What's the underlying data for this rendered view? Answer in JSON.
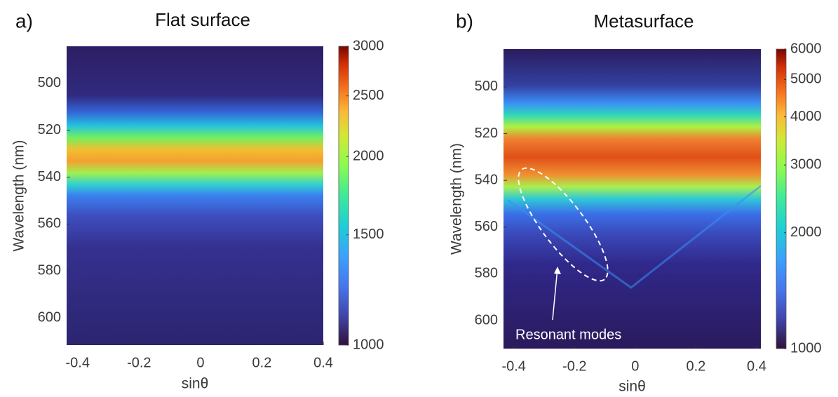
{
  "chart_data": [
    {
      "type": "heatmap",
      "panel_label": "a)",
      "title": "Flat surface",
      "x_label": "sinθ",
      "y_label": "Wavelength (nm)",
      "xlim": [
        -0.436,
        0.4
      ],
      "xticks": [
        -0.4,
        -0.2,
        0,
        0.2,
        0.4
      ],
      "ylim": [
        484.2,
        611.6
      ],
      "yticks": [
        500,
        520,
        540,
        560,
        580,
        600
      ],
      "y_inverted": true,
      "colorbar": {
        "lim": [
          1000,
          3000
        ],
        "ticks": [
          1000,
          1500,
          2000,
          2500,
          3000
        ],
        "scale": "log"
      }
    },
    {
      "type": "heatmap",
      "panel_label": "b)",
      "title": "Metasurface",
      "x_label": "sinθ",
      "y_label": "Wavelength (nm)",
      "xlim": [
        -0.434,
        0.414
      ],
      "xticks": [
        -0.4,
        -0.2,
        0,
        0.2,
        0.4
      ],
      "ylim": [
        483.8,
        612
      ],
      "yticks": [
        500,
        520,
        540,
        560,
        580,
        600
      ],
      "y_inverted": true,
      "colorbar": {
        "lim": [
          1000,
          6000
        ],
        "ticks": [
          1000,
          2000,
          3000,
          4000,
          5000,
          6000
        ],
        "scale": "log"
      },
      "annotation": "Resonant modes"
    }
  ]
}
